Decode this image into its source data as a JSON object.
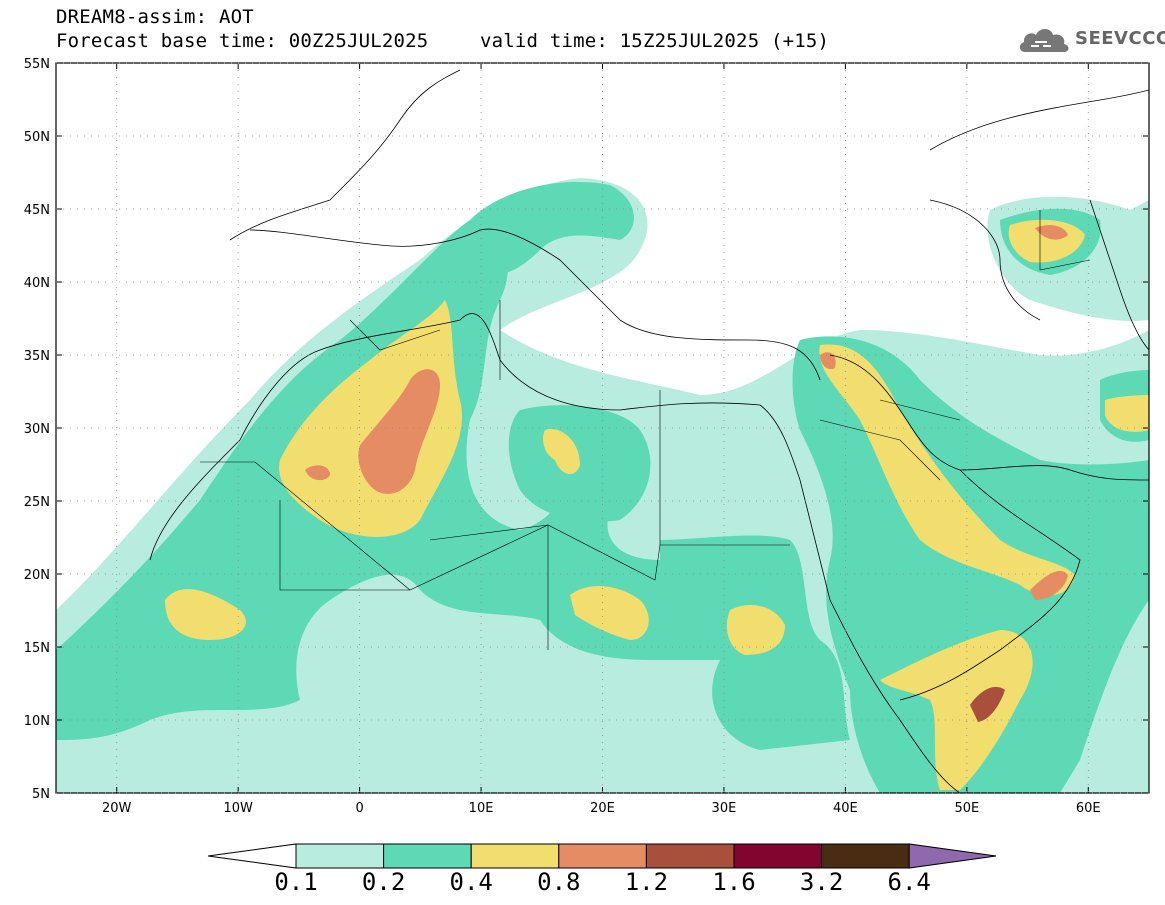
{
  "header": {
    "line1": "DREAM8-assim: AOT",
    "line2_left": "Forecast base time: 00Z25JUL2025",
    "line2_right": "valid time: 15Z25JUL2025 (+15)"
  },
  "logo": {
    "icon": "cloud-icon",
    "text": "SEEVCCC"
  },
  "axes": {
    "lat_labels": [
      "55N",
      "50N",
      "45N",
      "40N",
      "35N",
      "30N",
      "25N",
      "20N",
      "15N",
      "10N",
      "5N"
    ],
    "lon_labels": [
      "20W",
      "10W",
      "0",
      "10E",
      "20E",
      "30E",
      "40E",
      "50E",
      "60E"
    ],
    "lat_range": [
      5,
      55
    ],
    "lon_range": [
      -25,
      65
    ]
  },
  "legend": {
    "levels": [
      "0.1",
      "0.2",
      "0.4",
      "0.8",
      "1.2",
      "1.6",
      "3.2",
      "6.4"
    ],
    "colors": {
      "below": "#ffffff",
      "c1": "#b8ecdf",
      "c2": "#5ed9b5",
      "c3": "#f2de6e",
      "c4": "#e58c64",
      "c5": "#a9503d",
      "c6": "#820530",
      "c7": "#4a2c12",
      "above": "#8f68ad"
    }
  }
}
